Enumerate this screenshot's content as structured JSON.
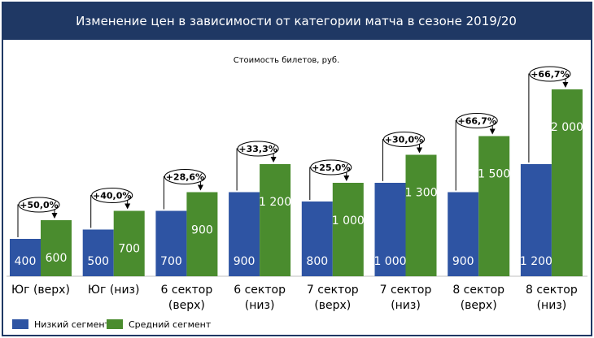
{
  "title": "Изменение цен в зависимости от категории матча в сезоне 2019/20",
  "chart_data": {
    "type": "bar",
    "subtitle": "Стоимость билетов, руб.",
    "categories": [
      [
        "Юг (верх)"
      ],
      [
        "Юг (низ)"
      ],
      [
        "6 сектор",
        "(верх)"
      ],
      [
        "6 сектор",
        "(низ)"
      ],
      [
        "7 сектор",
        "(верх)"
      ],
      [
        "7 сектор",
        "(низ)"
      ],
      [
        "8 сектор",
        "(верх)"
      ],
      [
        "8 сектор",
        "(низ)"
      ]
    ],
    "series": [
      {
        "name": "Низкий сегмент",
        "color": "#2e54a3",
        "values": [
          400,
          500,
          700,
          900,
          800,
          1000,
          900,
          1200
        ],
        "labels": [
          "400",
          "500",
          "700",
          "900",
          "800",
          "1 000",
          "900",
          "1 200"
        ]
      },
      {
        "name": "Средний сегмент",
        "color": "#4a8c2e",
        "values": [
          600,
          700,
          900,
          1200,
          1000,
          1300,
          1500,
          2000
        ],
        "labels": [
          "600",
          "700",
          "900",
          "1 200",
          "1 000",
          "1 300",
          "1 500",
          "2 000"
        ]
      }
    ],
    "changes": [
      "+50,0%",
      "+40,0%",
      "+28,6%",
      "+33,3%",
      "+25,0%",
      "+30,0%",
      "+66,7%",
      "+66,7%"
    ],
    "ylim": [
      0,
      2000
    ],
    "grid": false,
    "legend": "bottom-left"
  }
}
